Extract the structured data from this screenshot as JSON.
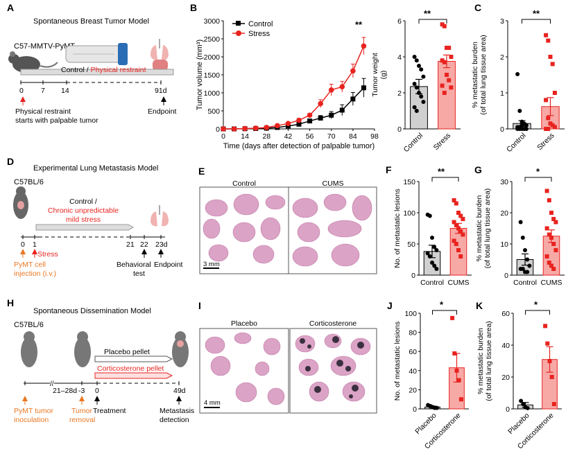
{
  "colors": {
    "control": "#000000",
    "stress": "#e8231f",
    "stress_fill": "#f7a9a6",
    "control_fill": "#d0d0d0",
    "orange": "#e87722",
    "tissue": "#d98fb4"
  },
  "panelA": {
    "letter": "A",
    "title": "Spontaneous Breast Tumor Model",
    "strain": "C57-MMTV-PyMT",
    "control_label": "Control / ",
    "restraint_label": "Physical restraint",
    "ticks": [
      "0",
      "7",
      "14",
      "91d"
    ],
    "note1": "Physical restraint",
    "note2": "starts with palpable tumor",
    "endpoint": "Endpoint"
  },
  "panelB": {
    "letter": "B",
    "sig": "**",
    "sig_bar": "**"
  },
  "panelC": {
    "letter": "C",
    "sig": "**"
  },
  "panelD": {
    "letter": "D",
    "title": "Experimental Lung Metastasis Model",
    "strain": "C57BL/6",
    "line1": "Control /",
    "line2": "Chronic unpredictable",
    "line3": "mild stress",
    "ticks": [
      "0",
      "1",
      "21",
      "22",
      "23d"
    ],
    "stress": "Stress",
    "inj1": "PyMT cell",
    "inj2": "injection (i.v.)",
    "beh1": "Behavioral",
    "beh2": "test",
    "endpoint": "Endpoint"
  },
  "panelE": {
    "letter": "E",
    "left": "Control",
    "right": "CUMS",
    "scale": "3 mm"
  },
  "panelF": {
    "letter": "F",
    "sig": "**"
  },
  "panelG": {
    "letter": "G",
    "sig": "*"
  },
  "panelH": {
    "letter": "H",
    "title": "Spontaneous Dissemination Model",
    "strain": "C57BL/6",
    "placebo": "Placebo pellet",
    "cort": "Corticosterone pellet",
    "ticks": [
      "21–28d",
      "-3",
      "0",
      "49d"
    ],
    "inoc1": "PyMT tumor",
    "inoc2": "inoculation",
    "rem1": "Tumor",
    "rem2": "removal",
    "treat": "Treatment",
    "met1": "Metastasis",
    "met2": "detection"
  },
  "panelI": {
    "letter": "I",
    "left": "Placebo",
    "right": "Corticosterone",
    "scale": "4 mm"
  },
  "panelJ": {
    "letter": "J",
    "sig": "*"
  },
  "panelK": {
    "letter": "K",
    "sig": "*"
  },
  "chart_data": [
    {
      "id": "B-line",
      "type": "line",
      "xlabel": "Time (days after detection of palpable tumor)",
      "ylabel": "Tumor volume (mm³)",
      "xlim": [
        0,
        98
      ],
      "ylim": [
        0,
        3000
      ],
      "xticks": [
        0,
        14,
        28,
        42,
        56,
        70,
        84,
        98
      ],
      "yticks": [
        0,
        500,
        1000,
        1500,
        2000,
        2500,
        3000
      ],
      "x": [
        0,
        7,
        14,
        21,
        28,
        35,
        42,
        49,
        56,
        63,
        70,
        77,
        84,
        91
      ],
      "series": [
        {
          "name": "Control",
          "values": [
            0,
            0,
            5,
            10,
            20,
            40,
            80,
            130,
            220,
            300,
            380,
            520,
            830,
            1140
          ],
          "err": [
            0,
            0,
            5,
            8,
            10,
            15,
            25,
            40,
            50,
            70,
            100,
            150,
            180,
            260
          ]
        },
        {
          "name": "Stress",
          "values": [
            0,
            0,
            10,
            20,
            40,
            90,
            150,
            240,
            380,
            700,
            1080,
            1170,
            1610,
            2300
          ],
          "err": [
            0,
            0,
            5,
            10,
            15,
            20,
            30,
            40,
            50,
            110,
            160,
            150,
            190,
            240
          ]
        }
      ]
    },
    {
      "id": "B-bar",
      "type": "bar",
      "ylabel": "Tumor weight (g)",
      "ylim": [
        0,
        6
      ],
      "yticks": [
        0,
        2,
        4,
        6
      ],
      "categories": [
        "Control",
        "Stress"
      ],
      "values": [
        2.35,
        3.75
      ],
      "err": [
        0.4,
        0.35
      ],
      "points": [
        [
          4.0,
          3.8,
          3.5,
          3.3,
          2.9,
          2.5,
          2.3,
          2.0,
          1.8,
          1.5,
          1.2,
          1.0
        ],
        [
          5.8,
          5.7,
          4.5,
          4.5,
          4.0,
          3.8,
          3.7,
          3.0,
          2.7,
          2.3,
          2.4,
          2.0
        ]
      ]
    },
    {
      "id": "C",
      "type": "bar",
      "ylabel": "% metastatic burden (of total lung tissue area)",
      "ylim": [
        0,
        3
      ],
      "yticks": [
        0,
        1,
        2,
        3
      ],
      "categories": [
        "Control",
        "Stress"
      ],
      "values": [
        0.15,
        0.62
      ],
      "err": [
        0.08,
        0.25
      ],
      "points": [
        [
          1.52,
          0.5,
          0.2,
          0.15,
          0.1,
          0.05,
          0.05,
          0.0,
          0.0,
          0.0,
          0.0,
          0.0,
          0.1
        ],
        [
          2.6,
          2.45,
          2.0,
          1.8,
          1.0,
          0.8,
          0.3,
          0.15,
          0.1,
          0.05,
          0.0,
          0.0
        ]
      ]
    },
    {
      "id": "F",
      "type": "bar",
      "ylabel": "No. of metastatic lesions",
      "ylim": [
        0,
        150
      ],
      "yticks": [
        0,
        50,
        100,
        150
      ],
      "categories": [
        "Control",
        "CUMS"
      ],
      "values": [
        38,
        75
      ],
      "err": [
        10,
        8
      ],
      "points": [
        [
          97,
          95,
          60,
          45,
          40,
          35,
          30,
          20,
          15,
          10
        ],
        [
          120,
          115,
          100,
          95,
          90,
          85,
          80,
          75,
          70,
          65,
          55,
          50,
          40,
          30
        ]
      ]
    },
    {
      "id": "G",
      "type": "bar",
      "ylabel": "% metastatic burden (of total lung tissue area)",
      "ylim": [
        0,
        30
      ],
      "yticks": [
        0,
        10,
        20,
        30
      ],
      "categories": [
        "Control",
        "CUMS"
      ],
      "values": [
        5,
        12.5
      ],
      "err": [
        1.8,
        2
      ],
      "points": [
        [
          17,
          12,
          8,
          5,
          3,
          2,
          2,
          1,
          1
        ],
        [
          27,
          24,
          20,
          18,
          17,
          15,
          13,
          12,
          10,
          8,
          6,
          4,
          3,
          2
        ]
      ]
    },
    {
      "id": "J",
      "type": "bar",
      "ylabel": "No. of metastatic lesions",
      "ylim": [
        0,
        100
      ],
      "yticks": [
        0,
        20,
        40,
        60,
        80,
        100
      ],
      "categories": [
        "Placebo",
        "Corticosterone"
      ],
      "values": [
        2,
        43
      ],
      "err": [
        1,
        15
      ],
      "points": [
        [
          4,
          3,
          2,
          1,
          1
        ],
        [
          95,
          58,
          40,
          30,
          10
        ]
      ]
    },
    {
      "id": "K",
      "type": "bar",
      "ylabel": "% metastatic burden (of total lung tissue area)",
      "ylim": [
        0,
        60
      ],
      "yticks": [
        0,
        20,
        40,
        60
      ],
      "categories": [
        "Placebo",
        "Corticosterone"
      ],
      "values": [
        2.5,
        31
      ],
      "err": [
        1.5,
        8
      ],
      "points": [
        [
          5,
          3,
          1,
          0.5
        ],
        [
          52,
          41,
          30,
          20,
          3
        ]
      ]
    }
  ]
}
